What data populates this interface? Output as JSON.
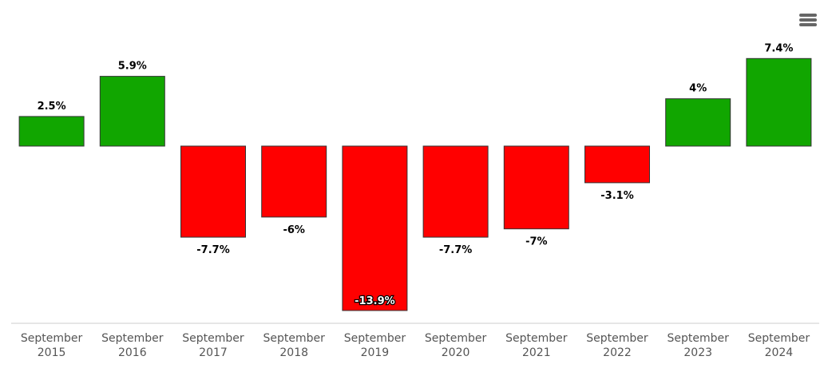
{
  "chart_data": {
    "type": "bar",
    "title": "",
    "xlabel": "",
    "ylabel": "",
    "categories": [
      [
        "September",
        "2015"
      ],
      [
        "September",
        "2016"
      ],
      [
        "September",
        "2017"
      ],
      [
        "September",
        "2018"
      ],
      [
        "September",
        "2019"
      ],
      [
        "September",
        "2020"
      ],
      [
        "September",
        "2021"
      ],
      [
        "September",
        "2022"
      ],
      [
        "September",
        "2023"
      ],
      [
        "September",
        "2024"
      ]
    ],
    "values": [
      2.5,
      5.9,
      -7.7,
      -6,
      -13.9,
      -7.7,
      -7,
      -3.1,
      4,
      7.4
    ],
    "data_labels": [
      "2.5%",
      "5.9%",
      "-7.7%",
      "-6%",
      "-13.9%",
      "-7.7%",
      "-7%",
      "-3.1%",
      "4%",
      "7.4%"
    ],
    "colors": {
      "positive": "#11a600",
      "negative": "#ff0000",
      "border": "#333333",
      "axis": "#cccccc"
    },
    "ylim": [
      -13.9,
      7.4
    ],
    "grid": false,
    "legend": "none"
  },
  "toolbar": {
    "menu_icon": "hamburger-menu-icon"
  }
}
